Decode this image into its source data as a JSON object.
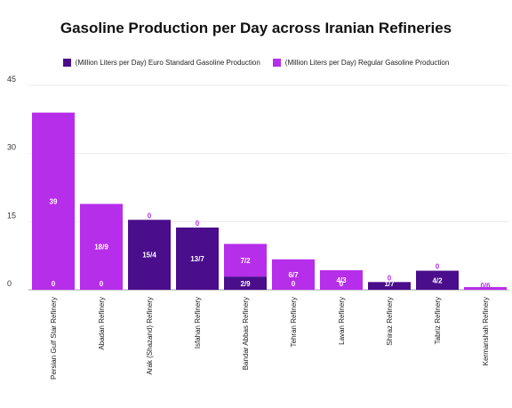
{
  "chart_data": {
    "type": "bar",
    "title": "Gasoline Production per Day across Iranian Refineries",
    "xlabel": "",
    "ylabel": "",
    "ylim": [
      0,
      45
    ],
    "yticks": [
      0,
      15,
      30,
      45
    ],
    "grid": true,
    "legend_position": "top",
    "categories": [
      "Persian Gulf Star Refinery",
      "Abadan Refinery",
      "Arak (Shazand) Refinery",
      "Isfahan Refinery",
      "Bandar Abbas Refinery",
      "Tehran Refinery",
      "Lavan Refinery",
      "Shiraz Refinery",
      "Tabriz Refinery",
      "Kermanshah Refinery"
    ],
    "series": [
      {
        "name": "(Million Liters per Day) Euro Standard Gasoline Production",
        "color": "#4a0d8c",
        "values": [
          0,
          0,
          15.4,
          13.7,
          2.9,
          0,
          0,
          1.7,
          4.2,
          0
        ],
        "labels": [
          "0",
          "0",
          "15/4",
          "13/7",
          "2/9",
          "0",
          "0",
          "1/7",
          "4/2",
          "0"
        ]
      },
      {
        "name": "(Million Liters per Day) Regular Gasoline Production",
        "color": "#b62eea",
        "values": [
          39,
          18.9,
          0,
          0,
          7.2,
          6.7,
          4.3,
          0,
          0,
          0.6
        ],
        "labels": [
          "39",
          "18/9",
          "0",
          "0",
          "7/2",
          "6/7",
          "4/3",
          "0",
          "0",
          "0/6"
        ]
      }
    ]
  }
}
